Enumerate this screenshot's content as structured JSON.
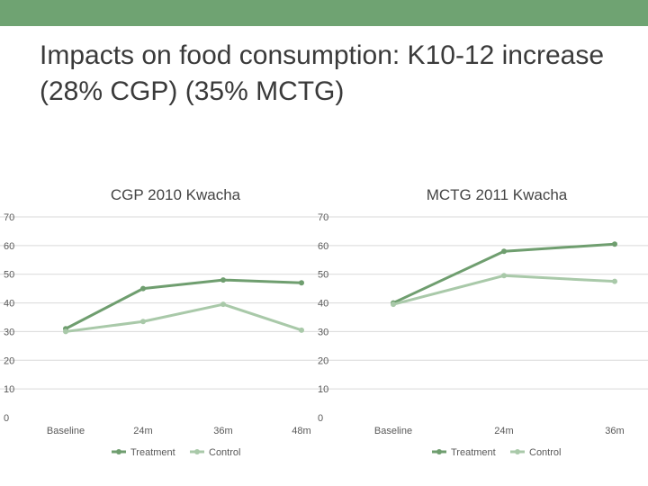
{
  "slide": {
    "title": "Impacts on food consumption: K10-12 increase (28% CGP) (35% MCTG)",
    "accent_color": "#6fa372"
  },
  "chart_data": [
    {
      "type": "line",
      "title": "CGP 2010 Kwacha",
      "categories": [
        "Baseline",
        "24m",
        "36m",
        "48m"
      ],
      "series": [
        {
          "name": "Treatment",
          "color": "#6f9e6f",
          "values": [
            31,
            45,
            48,
            47
          ]
        },
        {
          "name": "Control",
          "color": "#a9c9a9",
          "values": [
            30,
            33.5,
            39.5,
            30.5
          ]
        }
      ],
      "ylim": [
        0,
        70
      ],
      "yticks": [
        0,
        10,
        20,
        30,
        40,
        50,
        60,
        70
      ],
      "grid": true,
      "legend": "bottom"
    },
    {
      "type": "line",
      "title": "MCTG 2011 Kwacha",
      "categories": [
        "Baseline",
        "24m",
        "36m"
      ],
      "series": [
        {
          "name": "Treatment",
          "color": "#6f9e6f",
          "values": [
            40,
            58,
            60.5
          ]
        },
        {
          "name": "Control",
          "color": "#a9c9a9",
          "values": [
            39.5,
            49.5,
            47.5
          ]
        }
      ],
      "ylim": [
        0,
        70
      ],
      "yticks": [
        0,
        10,
        20,
        30,
        40,
        50,
        60,
        70
      ],
      "grid": true,
      "legend": "bottom"
    }
  ]
}
